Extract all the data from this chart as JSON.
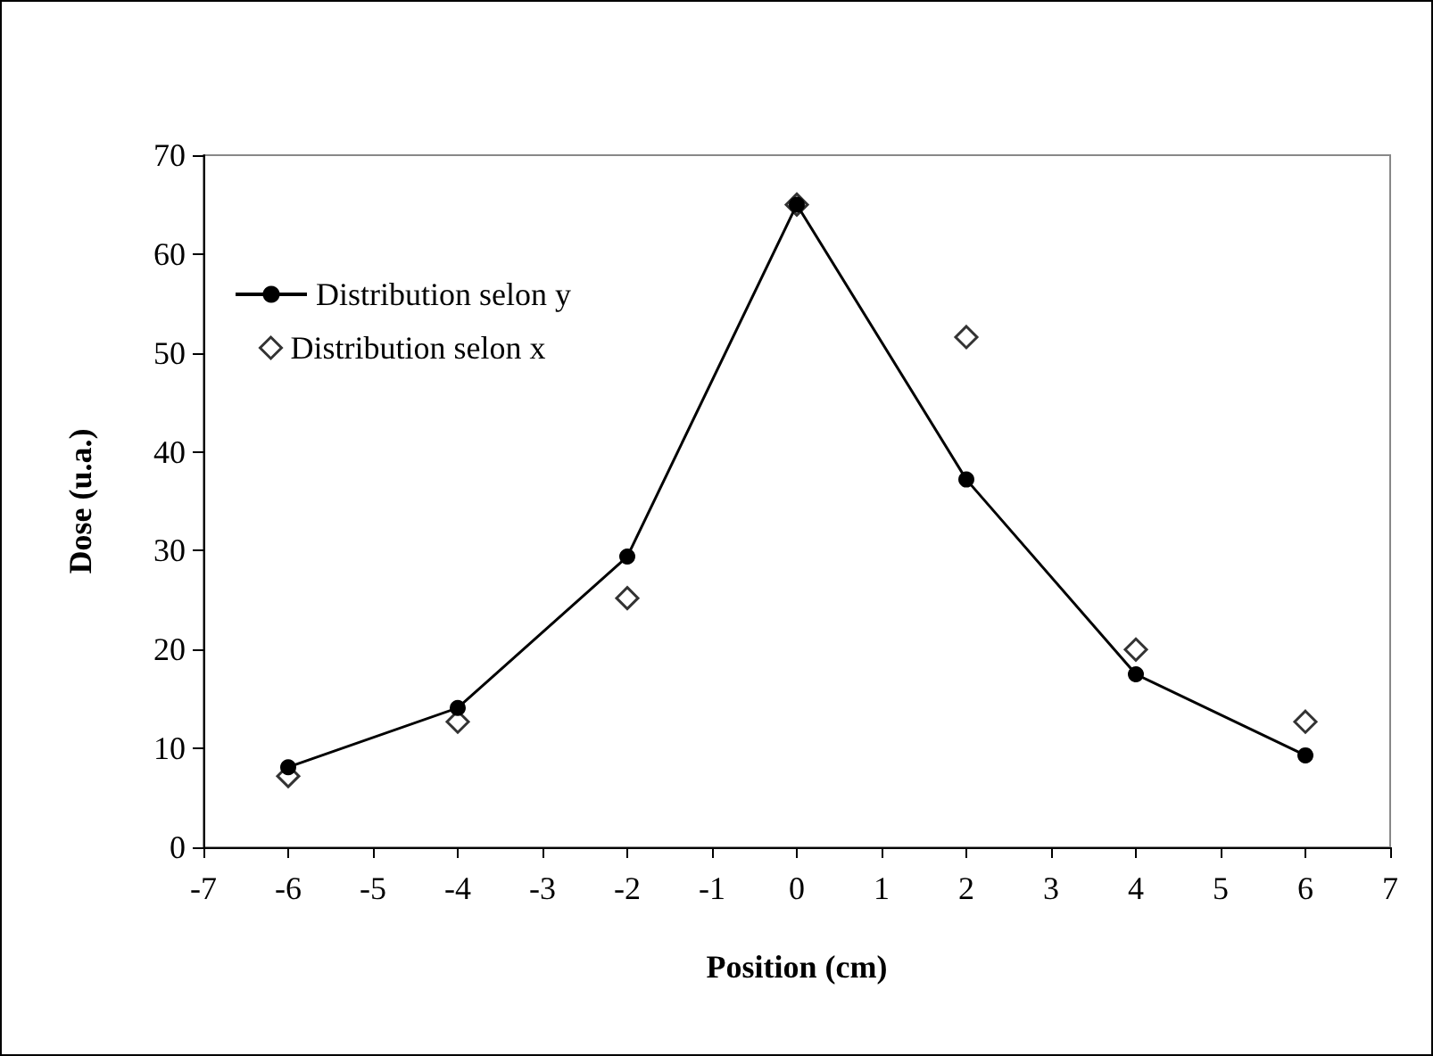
{
  "chart_data": {
    "type": "line",
    "xlabel": "Position (cm)",
    "ylabel": "Dose (u.a.)",
    "x": [
      -6,
      -4,
      -2,
      0,
      2,
      4,
      6
    ],
    "series": [
      {
        "name": "Distribution selon y",
        "type": "line",
        "color": "#000000",
        "marker": "circle",
        "values": [
          8.1,
          14.1,
          29.4,
          65,
          37.2,
          17.5,
          9.3
        ]
      },
      {
        "name": "Distribution selon x",
        "type": "scatter",
        "color": "#000000",
        "marker": "diamond",
        "values": [
          7.2,
          12.7,
          25.2,
          65,
          51.6,
          20.0,
          12.7
        ]
      }
    ],
    "xlim": [
      -7,
      7
    ],
    "xticks": [
      -7,
      -6,
      -5,
      -4,
      -3,
      -2,
      -1,
      0,
      1,
      2,
      3,
      4,
      5,
      6,
      7
    ],
    "ylim": [
      0,
      70
    ],
    "yticks": [
      0,
      10,
      20,
      30,
      40,
      50,
      60,
      70
    ],
    "grid": false,
    "legend": "top left",
    "line_style": "solid"
  }
}
